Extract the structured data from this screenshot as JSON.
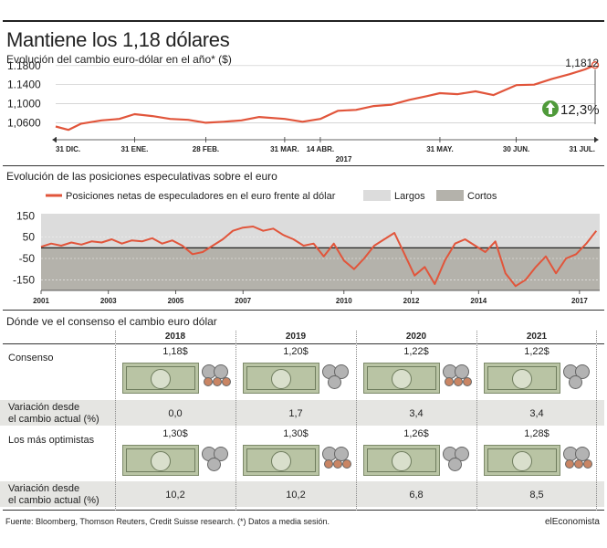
{
  "header": {
    "title": "Mantiene los 1,18 dólares",
    "subtitle1": "Evolución del cambio euro-dólar en el año* ($)",
    "subtitle2": "Evolución de las posiciones especulativas sobre el euro",
    "subtitle3": "Dónde ve el consenso el cambio euro dólar"
  },
  "chart_data": [
    {
      "type": "line",
      "title": "Evolución del cambio euro-dólar en el año* ($)",
      "y_tick_labels": [
        "1.1800",
        "1.1400",
        "1,1000",
        "1,0600"
      ],
      "y_ticks": [
        1.18,
        1.14,
        1.1,
        1.06
      ],
      "ylim": [
        1.03,
        1.195
      ],
      "x_tick_labels": [
        "31 DIC.",
        "31 ENE.",
        "28 FEB.",
        "31 MAR.",
        "14 ABR.",
        "31 MAY.",
        "30 JUN.",
        "31 JUL."
      ],
      "x_tick_days": [
        0,
        31,
        59,
        90,
        104,
        151,
        181,
        212
      ],
      "xlim_days": [
        0,
        212
      ],
      "year_label": "2017",
      "end_label": "1,1812",
      "change_label": "12,3%",
      "color": "#e1553b",
      "series": [
        {
          "x": [
            0,
            5,
            10,
            18,
            25,
            31,
            38,
            45,
            52,
            59,
            66,
            73,
            80,
            90,
            97,
            104,
            111,
            118,
            125,
            132,
            139,
            146,
            151,
            158,
            165,
            172,
            181,
            188,
            195,
            202,
            208,
            212
          ],
          "y": [
            1.052,
            1.045,
            1.058,
            1.065,
            1.068,
            1.078,
            1.074,
            1.068,
            1.066,
            1.06,
            1.062,
            1.065,
            1.072,
            1.068,
            1.062,
            1.068,
            1.085,
            1.087,
            1.095,
            1.098,
            1.108,
            1.116,
            1.122,
            1.12,
            1.126,
            1.118,
            1.139,
            1.14,
            1.152,
            1.162,
            1.172,
            1.1812
          ]
        }
      ]
    },
    {
      "type": "line",
      "title": "Evolución de las posiciones especulativas sobre el euro",
      "y_tick_labels": [
        "150",
        "50",
        "-50",
        "-150"
      ],
      "y_ticks": [
        150,
        50,
        -50,
        -150
      ],
      "ylim": [
        -200,
        160
      ],
      "x_tick_labels": [
        "2001",
        "2003",
        "2005",
        "2007",
        "2010",
        "2012",
        "2014",
        "2017"
      ],
      "x_tick_years": [
        2001,
        2003,
        2005,
        2007,
        2010,
        2012,
        2014,
        2017
      ],
      "xlim": [
        2001,
        2017.6
      ],
      "legend": [
        "Posiciones netas de especuladores en el euro frente al dólar",
        "Largos",
        "Cortos"
      ],
      "colors": {
        "line": "#e1553b",
        "largos": "#dcdcdc",
        "cortos": "#b4b2ab"
      },
      "series": [
        {
          "name": "Posiciones netas de especuladores en el euro frente al dólar",
          "x": [
            2001.0,
            2001.3,
            2001.6,
            2001.9,
            2002.2,
            2002.5,
            2002.8,
            2003.1,
            2003.4,
            2003.7,
            2004.0,
            2004.3,
            2004.6,
            2004.9,
            2005.2,
            2005.5,
            2005.8,
            2006.1,
            2006.4,
            2006.7,
            2007.0,
            2007.3,
            2007.6,
            2007.9,
            2008.2,
            2008.5,
            2008.8,
            2009.1,
            2009.4,
            2009.7,
            2010.0,
            2010.3,
            2010.6,
            2010.9,
            2011.2,
            2011.5,
            2011.8,
            2012.1,
            2012.4,
            2012.7,
            2013.0,
            2013.3,
            2013.6,
            2013.9,
            2014.2,
            2014.5,
            2014.8,
            2015.1,
            2015.4,
            2015.7,
            2016.0,
            2016.3,
            2016.6,
            2016.9,
            2017.2,
            2017.5
          ],
          "y": [
            5,
            20,
            10,
            25,
            15,
            30,
            25,
            40,
            20,
            35,
            30,
            45,
            20,
            35,
            10,
            -30,
            -20,
            10,
            40,
            80,
            95,
            100,
            80,
            90,
            60,
            40,
            10,
            20,
            -40,
            20,
            -60,
            -100,
            -50,
            10,
            40,
            70,
            -30,
            -130,
            -90,
            -170,
            -60,
            20,
            40,
            10,
            -20,
            30,
            -120,
            -180,
            -150,
            -90,
            -40,
            -120,
            -50,
            -30,
            20,
            80
          ]
        }
      ]
    }
  ],
  "table": {
    "years": [
      "2018",
      "2019",
      "2020",
      "2021"
    ],
    "rows": {
      "consenso": {
        "label": "Consenso",
        "values": [
          "1,18$",
          "1,20$",
          "1,22$",
          "1,22$"
        ]
      },
      "var1": {
        "label_line1": "Variación desde",
        "label_line2": "el cambio actual (%)",
        "values": [
          "0,0",
          "1,7",
          "3,4",
          "3,4"
        ]
      },
      "optimistas": {
        "label": "Los más optimistas",
        "values": [
          "1,30$",
          "1,30$",
          "1,26$",
          "1,28$"
        ]
      },
      "var2": {
        "label_line1": "Variación desde",
        "label_line2": "el cambio actual (%)",
        "values": [
          "10,2",
          "10,2",
          "6,8",
          "8,5"
        ]
      }
    },
    "colors": {
      "shade": "#e5e5e2",
      "banknote": "#b9c4a4",
      "silver": "#b3b3b3",
      "copper": "#c98564"
    }
  },
  "footer": {
    "source": "Fuente: Bloomberg, Thomson Reuters, Credit Suisse research. (*) Datos a media sesión.",
    "brand": "elEconomista"
  }
}
